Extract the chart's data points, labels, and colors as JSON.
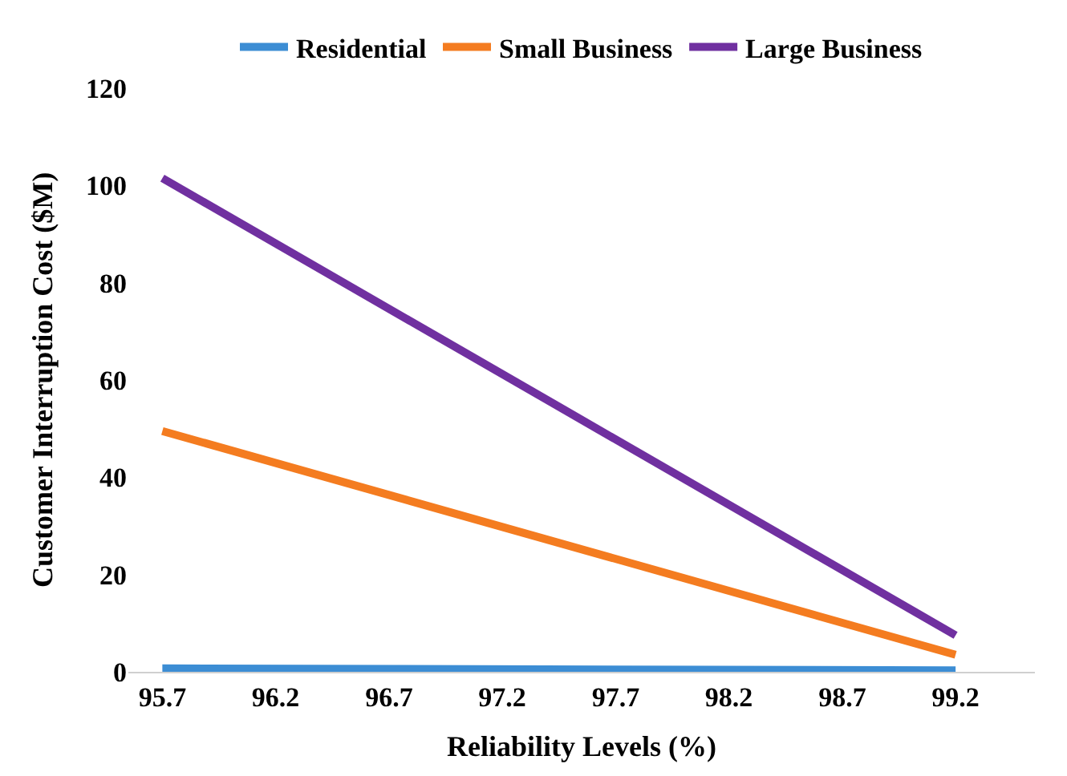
{
  "chart_data": {
    "type": "line",
    "xlabel": "Reliability Levels (%)",
    "ylabel": "Customer Interruption Cost ($M)",
    "xlim": [
      95.55,
      99.55
    ],
    "xticks": [
      95.7,
      96.2,
      96.7,
      97.2,
      97.7,
      98.2,
      98.7,
      99.2
    ],
    "ylim": [
      0,
      120
    ],
    "yticks": [
      0,
      20,
      40,
      60,
      80,
      100,
      120
    ],
    "x": [
      95.7,
      99.2
    ],
    "series": [
      {
        "name": "Residential",
        "color": "#3c8dd4",
        "values": [
          0.7,
          0.3
        ]
      },
      {
        "name": "Small Business",
        "color": "#f47c20",
        "values": [
          49.5,
          3.5
        ]
      },
      {
        "name": "Large Business",
        "color": "#7030a0",
        "values": [
          101.5,
          7.5
        ]
      }
    ],
    "legend": "top",
    "marker": "none",
    "line_style": "solid"
  }
}
